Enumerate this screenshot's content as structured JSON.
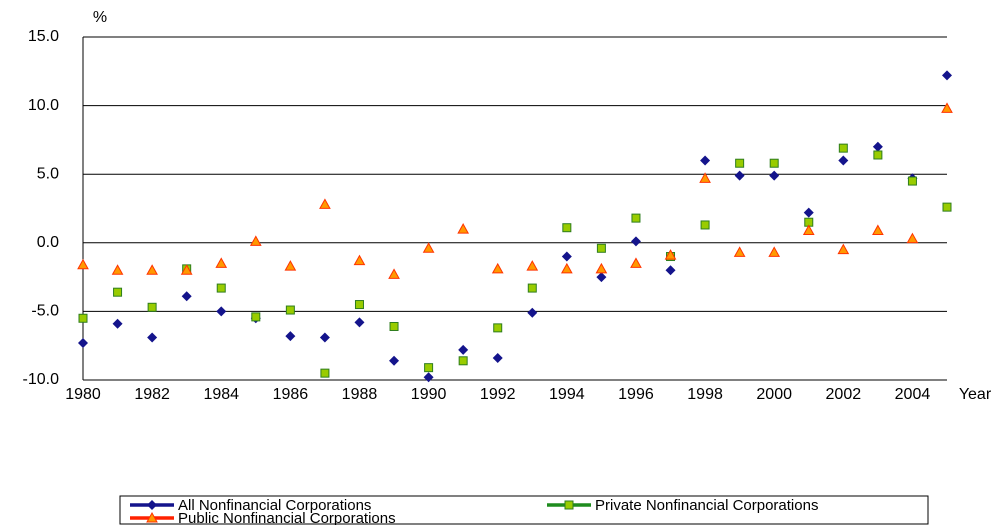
{
  "chart_data": {
    "type": "line",
    "y_unit_label": "%",
    "x_axis_label": "Year",
    "x": [
      1980,
      1981,
      1982,
      1983,
      1984,
      1985,
      1986,
      1987,
      1988,
      1989,
      1990,
      1991,
      1992,
      1993,
      1994,
      1995,
      1996,
      1997,
      1998,
      1999,
      2000,
      2001,
      2002,
      2003,
      2004,
      2005
    ],
    "xlim": [
      1980,
      2005
    ],
    "xticks": [
      1980,
      1982,
      1984,
      1986,
      1988,
      1990,
      1992,
      1994,
      1996,
      1998,
      2000,
      2002,
      2004
    ],
    "ylim": [
      -10,
      15
    ],
    "yticks": [
      {
        "value": -10,
        "label": "-10.0"
      },
      {
        "value": -5,
        "label": "-5.0"
      },
      {
        "value": 0,
        "label": "0.0"
      },
      {
        "value": 5,
        "label": "5.0"
      },
      {
        "value": 10,
        "label": "10.0"
      },
      {
        "value": 15,
        "label": "15.0"
      }
    ],
    "grid": true,
    "series": [
      {
        "name": "All Nonfinancial Corporations",
        "color": "#14148c",
        "marker": "diamond",
        "marker_color": "#14148c",
        "values": [
          -7.3,
          -5.9,
          -6.9,
          -3.9,
          -5.0,
          -5.5,
          -6.8,
          -6.9,
          -5.8,
          -8.6,
          -9.8,
          -7.8,
          -8.4,
          -5.1,
          -1.0,
          -2.5,
          0.1,
          -2.0,
          6.0,
          4.9,
          4.9,
          2.2,
          6.0,
          7.0,
          4.7,
          12.2
        ]
      },
      {
        "name": "Private Nonfinancial Corporations",
        "color": "#1e8c1e",
        "marker": "square",
        "marker_color": "#99cc00",
        "values": [
          -5.5,
          -3.6,
          -4.7,
          -1.9,
          -3.3,
          -5.4,
          -4.9,
          -9.5,
          -4.5,
          -6.1,
          -9.1,
          -8.6,
          -6.2,
          -3.3,
          1.1,
          -0.4,
          1.8,
          -1.0,
          1.3,
          5.8,
          5.8,
          1.5,
          6.9,
          6.4,
          4.5,
          2.6
        ]
      },
      {
        "name": "Public Nonfinancial Corporations",
        "color": "#ff2200",
        "marker": "triangle",
        "marker_color": "#ff9900",
        "values": [
          -1.6,
          -2.0,
          -2.0,
          -2.0,
          -1.5,
          0.1,
          -1.7,
          2.8,
          -1.3,
          -2.3,
          -0.4,
          1.0,
          -1.9,
          -1.7,
          -1.9,
          -1.9,
          -1.5,
          -0.9,
          4.7,
          -0.7,
          -0.7,
          0.9,
          -0.5,
          0.9,
          0.3,
          9.8
        ]
      }
    ]
  }
}
